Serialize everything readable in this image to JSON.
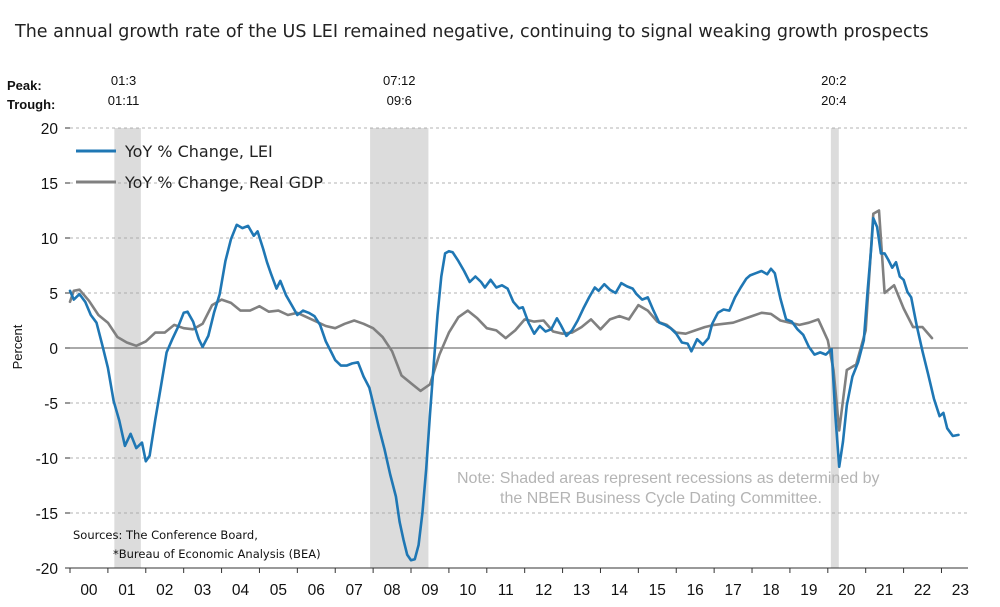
{
  "chart_data": {
    "type": "line",
    "title": "The annual growth rate of the US LEI remained negative, continuing to signal weaking growth prospects",
    "ylabel": "Percent",
    "ylim": [
      -20,
      20
    ],
    "yticks": [
      "20",
      "15",
      "10",
      "5",
      "0",
      "-5",
      "-10",
      "-15",
      "-20"
    ],
    "xlim": [
      2000.0,
      2023.7
    ],
    "xticks": [
      "00",
      "01",
      "02",
      "03",
      "04",
      "05",
      "06",
      "07",
      "08",
      "09",
      "10",
      "11",
      "12",
      "13",
      "14",
      "15",
      "16",
      "17",
      "18",
      "19",
      "20",
      "21",
      "22",
      "23"
    ],
    "recession_header": {
      "peak": "Peak:",
      "trough": "Trough:"
    },
    "recessions": [
      {
        "peak": "01:3",
        "trough": "01:11",
        "start": 2001.17,
        "end": 2001.87
      },
      {
        "peak": "07:12",
        "trough": "09:6",
        "start": 2007.92,
        "end": 2009.46
      },
      {
        "peak": "20:2",
        "trough": "20:4",
        "start": 2020.08,
        "end": 2020.29
      }
    ],
    "legend_position": "top-left",
    "series": [
      {
        "name": "YoY % Change, LEI",
        "color": "#1f77b4",
        "points": [
          [
            2000.0,
            5.2
          ],
          [
            2000.1,
            4.4
          ],
          [
            2000.25,
            4.9
          ],
          [
            2000.4,
            4.2
          ],
          [
            2000.55,
            3.0
          ],
          [
            2000.7,
            2.3
          ],
          [
            2000.85,
            0.3
          ],
          [
            2001.0,
            -1.8
          ],
          [
            2001.15,
            -4.8
          ],
          [
            2001.3,
            -6.6
          ],
          [
            2001.45,
            -8.9
          ],
          [
            2001.6,
            -7.8
          ],
          [
            2001.75,
            -9.1
          ],
          [
            2001.9,
            -8.6
          ],
          [
            2002.0,
            -10.3
          ],
          [
            2002.1,
            -9.8
          ],
          [
            2002.25,
            -6.5
          ],
          [
            2002.4,
            -3.5
          ],
          [
            2002.55,
            -0.4
          ],
          [
            2002.7,
            0.8
          ],
          [
            2002.85,
            1.9
          ],
          [
            2003.0,
            3.2
          ],
          [
            2003.1,
            3.3
          ],
          [
            2003.25,
            2.4
          ],
          [
            2003.4,
            0.8
          ],
          [
            2003.5,
            0.1
          ],
          [
            2003.65,
            1.1
          ],
          [
            2003.8,
            3.2
          ],
          [
            2003.95,
            4.9
          ],
          [
            2004.1,
            7.9
          ],
          [
            2004.25,
            9.9
          ],
          [
            2004.4,
            11.2
          ],
          [
            2004.55,
            10.9
          ],
          [
            2004.7,
            11.1
          ],
          [
            2004.85,
            10.2
          ],
          [
            2004.95,
            10.6
          ],
          [
            2005.1,
            9.0
          ],
          [
            2005.2,
            7.8
          ],
          [
            2005.3,
            6.8
          ],
          [
            2005.45,
            5.4
          ],
          [
            2005.55,
            6.1
          ],
          [
            2005.7,
            4.8
          ],
          [
            2005.85,
            3.9
          ],
          [
            2006.0,
            3.0
          ],
          [
            2006.15,
            3.4
          ],
          [
            2006.3,
            3.2
          ],
          [
            2006.45,
            2.9
          ],
          [
            2006.6,
            2.1
          ],
          [
            2006.75,
            0.6
          ],
          [
            2006.9,
            -0.4
          ],
          [
            2007.0,
            -1.1
          ],
          [
            2007.15,
            -1.6
          ],
          [
            2007.3,
            -1.6
          ],
          [
            2007.45,
            -1.4
          ],
          [
            2007.6,
            -1.3
          ],
          [
            2007.75,
            -2.6
          ],
          [
            2007.9,
            -3.6
          ],
          [
            2008.0,
            -5.0
          ],
          [
            2008.15,
            -7.2
          ],
          [
            2008.3,
            -9.2
          ],
          [
            2008.45,
            -11.5
          ],
          [
            2008.6,
            -13.5
          ],
          [
            2008.7,
            -15.8
          ],
          [
            2008.8,
            -17.4
          ],
          [
            2008.9,
            -18.8
          ],
          [
            2009.0,
            -19.3
          ],
          [
            2009.1,
            -19.2
          ],
          [
            2009.2,
            -17.9
          ],
          [
            2009.3,
            -15.0
          ],
          [
            2009.4,
            -11.0
          ],
          [
            2009.5,
            -6.0
          ],
          [
            2009.6,
            -1.5
          ],
          [
            2009.7,
            3.0
          ],
          [
            2009.8,
            6.5
          ],
          [
            2009.9,
            8.6
          ],
          [
            2010.0,
            8.8
          ],
          [
            2010.1,
            8.7
          ],
          [
            2010.25,
            7.9
          ],
          [
            2010.4,
            7.0
          ],
          [
            2010.55,
            6.0
          ],
          [
            2010.7,
            6.5
          ],
          [
            2010.85,
            6.0
          ],
          [
            2010.95,
            5.5
          ],
          [
            2011.1,
            6.2
          ],
          [
            2011.25,
            5.5
          ],
          [
            2011.4,
            5.7
          ],
          [
            2011.55,
            5.4
          ],
          [
            2011.7,
            4.2
          ],
          [
            2011.85,
            3.6
          ],
          [
            2011.95,
            3.7
          ],
          [
            2012.1,
            2.3
          ],
          [
            2012.25,
            1.3
          ],
          [
            2012.4,
            2.0
          ],
          [
            2012.55,
            1.5
          ],
          [
            2012.7,
            1.7
          ],
          [
            2012.85,
            2.7
          ],
          [
            2012.95,
            2.1
          ],
          [
            2013.1,
            1.1
          ],
          [
            2013.25,
            1.6
          ],
          [
            2013.4,
            2.5
          ],
          [
            2013.55,
            3.6
          ],
          [
            2013.7,
            4.6
          ],
          [
            2013.85,
            5.5
          ],
          [
            2013.95,
            5.2
          ],
          [
            2014.1,
            5.8
          ],
          [
            2014.25,
            5.3
          ],
          [
            2014.4,
            5.0
          ],
          [
            2014.55,
            5.9
          ],
          [
            2014.7,
            5.6
          ],
          [
            2014.85,
            5.4
          ],
          [
            2014.95,
            4.9
          ],
          [
            2015.1,
            4.4
          ],
          [
            2015.25,
            4.6
          ],
          [
            2015.4,
            3.4
          ],
          [
            2015.55,
            2.3
          ],
          [
            2015.7,
            2.1
          ],
          [
            2015.85,
            1.8
          ],
          [
            2016.0,
            1.3
          ],
          [
            2016.15,
            0.5
          ],
          [
            2016.3,
            0.4
          ],
          [
            2016.4,
            -0.3
          ],
          [
            2016.55,
            0.8
          ],
          [
            2016.7,
            0.3
          ],
          [
            2016.85,
            0.9
          ],
          [
            2016.95,
            2.2
          ],
          [
            2017.1,
            3.2
          ],
          [
            2017.25,
            3.5
          ],
          [
            2017.4,
            3.4
          ],
          [
            2017.55,
            4.6
          ],
          [
            2017.7,
            5.5
          ],
          [
            2017.85,
            6.3
          ],
          [
            2017.95,
            6.6
          ],
          [
            2018.1,
            6.8
          ],
          [
            2018.25,
            7.0
          ],
          [
            2018.4,
            6.7
          ],
          [
            2018.5,
            7.2
          ],
          [
            2018.6,
            6.8
          ],
          [
            2018.75,
            4.5
          ],
          [
            2018.9,
            2.6
          ],
          [
            2019.05,
            2.4
          ],
          [
            2019.2,
            1.7
          ],
          [
            2019.35,
            1.2
          ],
          [
            2019.5,
            0.1
          ],
          [
            2019.65,
            -0.6
          ],
          [
            2019.8,
            -0.4
          ],
          [
            2019.95,
            -0.6
          ],
          [
            2020.1,
            -0.1
          ],
          [
            2020.2,
            -6.2
          ],
          [
            2020.3,
            -10.8
          ],
          [
            2020.4,
            -8.5
          ],
          [
            2020.5,
            -5.2
          ],
          [
            2020.65,
            -2.6
          ],
          [
            2020.8,
            -1.3
          ],
          [
            2020.95,
            0.7
          ],
          [
            2021.05,
            5.2
          ],
          [
            2021.15,
            9.3
          ],
          [
            2021.2,
            11.8
          ],
          [
            2021.3,
            11.0
          ],
          [
            2021.4,
            8.6
          ],
          [
            2021.5,
            8.6
          ],
          [
            2021.6,
            8.0
          ],
          [
            2021.7,
            7.3
          ],
          [
            2021.8,
            7.8
          ],
          [
            2021.9,
            6.5
          ],
          [
            2022.0,
            6.2
          ],
          [
            2022.1,
            5.1
          ],
          [
            2022.2,
            4.6
          ],
          [
            2022.35,
            2.0
          ],
          [
            2022.5,
            -0.3
          ],
          [
            2022.65,
            -2.4
          ],
          [
            2022.8,
            -4.6
          ],
          [
            2022.95,
            -6.2
          ],
          [
            2023.05,
            -5.9
          ],
          [
            2023.15,
            -7.3
          ],
          [
            2023.3,
            -8.0
          ],
          [
            2023.45,
            -7.9
          ]
        ]
      },
      {
        "name": "YoY % Change, Real GDP",
        "color": "#808080",
        "points": [
          [
            2000.0,
            4.2
          ],
          [
            2000.1,
            5.2
          ],
          [
            2000.25,
            5.3
          ],
          [
            2000.5,
            4.3
          ],
          [
            2000.75,
            3.0
          ],
          [
            2001.0,
            2.3
          ],
          [
            2001.25,
            1.0
          ],
          [
            2001.5,
            0.5
          ],
          [
            2001.75,
            0.2
          ],
          [
            2002.0,
            0.6
          ],
          [
            2002.25,
            1.4
          ],
          [
            2002.5,
            1.4
          ],
          [
            2002.75,
            2.1
          ],
          [
            2003.0,
            1.8
          ],
          [
            2003.25,
            1.7
          ],
          [
            2003.5,
            2.2
          ],
          [
            2003.75,
            3.9
          ],
          [
            2004.0,
            4.4
          ],
          [
            2004.25,
            4.1
          ],
          [
            2004.5,
            3.4
          ],
          [
            2004.75,
            3.4
          ],
          [
            2005.0,
            3.8
          ],
          [
            2005.25,
            3.3
          ],
          [
            2005.5,
            3.4
          ],
          [
            2005.75,
            3.0
          ],
          [
            2006.0,
            3.2
          ],
          [
            2006.25,
            2.8
          ],
          [
            2006.5,
            2.4
          ],
          [
            2006.75,
            2.0
          ],
          [
            2007.0,
            1.8
          ],
          [
            2007.25,
            2.2
          ],
          [
            2007.5,
            2.5
          ],
          [
            2007.75,
            2.2
          ],
          [
            2008.0,
            1.8
          ],
          [
            2008.25,
            1.0
          ],
          [
            2008.5,
            -0.3
          ],
          [
            2008.75,
            -2.5
          ],
          [
            2009.0,
            -3.2
          ],
          [
            2009.25,
            -3.9
          ],
          [
            2009.5,
            -3.3
          ],
          [
            2009.75,
            -0.6
          ],
          [
            2010.0,
            1.4
          ],
          [
            2010.25,
            2.8
          ],
          [
            2010.5,
            3.4
          ],
          [
            2010.75,
            2.7
          ],
          [
            2011.0,
            1.8
          ],
          [
            2011.25,
            1.6
          ],
          [
            2011.5,
            0.9
          ],
          [
            2011.75,
            1.6
          ],
          [
            2012.0,
            2.6
          ],
          [
            2012.25,
            2.4
          ],
          [
            2012.5,
            2.5
          ],
          [
            2012.75,
            1.5
          ],
          [
            2013.0,
            1.3
          ],
          [
            2013.25,
            1.4
          ],
          [
            2013.5,
            1.9
          ],
          [
            2013.75,
            2.6
          ],
          [
            2014.0,
            1.7
          ],
          [
            2014.25,
            2.6
          ],
          [
            2014.5,
            2.9
          ],
          [
            2014.75,
            2.6
          ],
          [
            2015.0,
            3.9
          ],
          [
            2015.25,
            3.4
          ],
          [
            2015.5,
            2.4
          ],
          [
            2015.75,
            2.1
          ],
          [
            2016.0,
            1.4
          ],
          [
            2016.25,
            1.3
          ],
          [
            2016.5,
            1.6
          ],
          [
            2016.75,
            1.9
          ],
          [
            2017.0,
            2.1
          ],
          [
            2017.25,
            2.2
          ],
          [
            2017.5,
            2.3
          ],
          [
            2017.75,
            2.6
          ],
          [
            2018.0,
            2.9
          ],
          [
            2018.25,
            3.2
          ],
          [
            2018.5,
            3.1
          ],
          [
            2018.75,
            2.5
          ],
          [
            2019.0,
            2.3
          ],
          [
            2019.25,
            2.1
          ],
          [
            2019.5,
            2.3
          ],
          [
            2019.75,
            2.6
          ],
          [
            2020.0,
            0.7
          ],
          [
            2020.15,
            -2.0
          ],
          [
            2020.3,
            -7.5
          ],
          [
            2020.5,
            -2.0
          ],
          [
            2020.75,
            -1.5
          ],
          [
            2021.0,
            1.6
          ],
          [
            2021.2,
            12.2
          ],
          [
            2021.35,
            12.5
          ],
          [
            2021.5,
            5.0
          ],
          [
            2021.75,
            5.7
          ],
          [
            2022.0,
            3.6
          ],
          [
            2022.25,
            1.9
          ],
          [
            2022.5,
            1.9
          ],
          [
            2022.75,
            0.9
          ]
        ]
      }
    ],
    "note_lines": [
      "Note: Shaded areas represent recessions as determined by",
      "the NBER Business Cycle Dating Committee."
    ],
    "source_lines": [
      "Sources: The Conference Board,",
      "*Bureau of Economic Analysis (BEA)"
    ]
  }
}
